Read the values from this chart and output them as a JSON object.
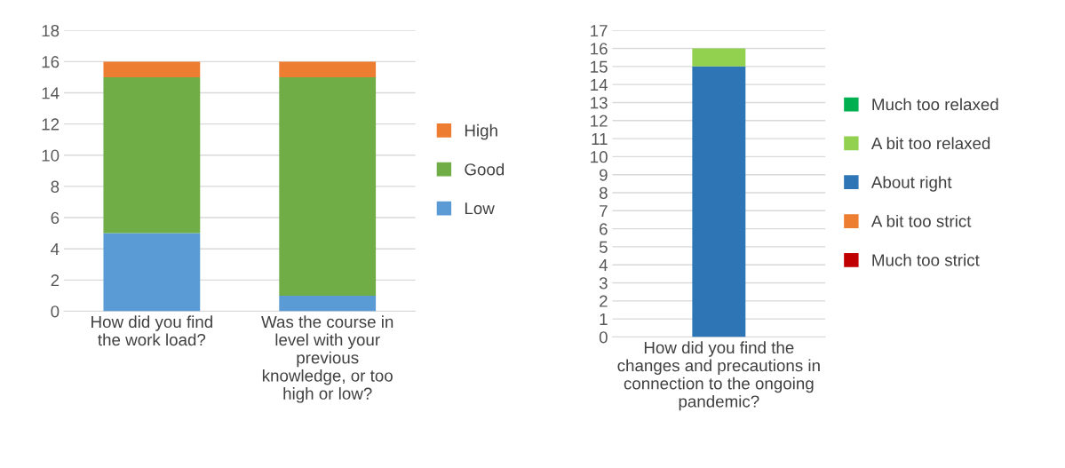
{
  "chart_data": [
    {
      "type": "bar",
      "stacked": true,
      "categories": [
        "How did you find\nthe work load?",
        "Was the course in\nlevel with your\nprevious\nknowledge, or too\nhigh or low?"
      ],
      "series": [
        {
          "name": "Low",
          "color": "#5b9bd5",
          "values": [
            5,
            1
          ]
        },
        {
          "name": "Good",
          "color": "#70ad47",
          "values": [
            10,
            14
          ]
        },
        {
          "name": "High",
          "color": "#ed7d31",
          "values": [
            1,
            1
          ]
        }
      ],
      "ylim": [
        0,
        18
      ],
      "yticks": [
        0,
        2,
        4,
        6,
        8,
        10,
        12,
        14,
        16,
        18
      ],
      "grid": "y",
      "legend": "right"
    },
    {
      "type": "bar",
      "stacked": true,
      "categories": [
        "How did you find the\nchanges and precautions in\nconnection to the ongoing\npandemic?"
      ],
      "series": [
        {
          "name": "Much too strict",
          "color": "#c00000",
          "values": [
            0
          ]
        },
        {
          "name": "A bit too strict",
          "color": "#ed7d31",
          "values": [
            0
          ]
        },
        {
          "name": "About right",
          "color": "#2e75b6",
          "values": [
            15
          ]
        },
        {
          "name": "A bit too relaxed",
          "color": "#92d050",
          "values": [
            1
          ]
        },
        {
          "name": "Much too relaxed",
          "color": "#00b050",
          "values": [
            0
          ]
        }
      ],
      "ylim": [
        0,
        17
      ],
      "yticks": [
        0,
        1,
        2,
        3,
        4,
        5,
        6,
        7,
        8,
        9,
        10,
        11,
        12,
        13,
        14,
        15,
        16,
        17
      ],
      "grid": "y",
      "legend": "right"
    }
  ]
}
